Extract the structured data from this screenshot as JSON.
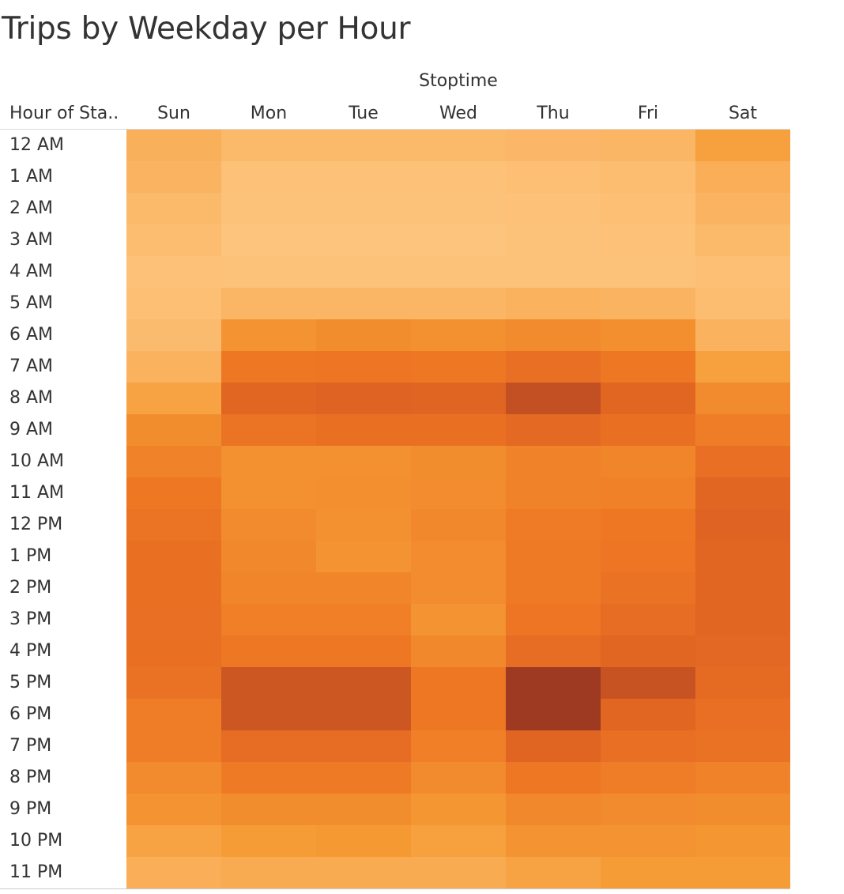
{
  "chart_data": {
    "type": "heatmap",
    "title": "Trips by Weekday per Hour",
    "column_group_label": "Stoptime",
    "row_header_label": "Hour of Sta..",
    "columns": [
      "Sun",
      "Mon",
      "Tue",
      "Wed",
      "Thu",
      "Fri",
      "Sat"
    ],
    "rows": [
      "12 AM",
      "1 AM",
      "2 AM",
      "3 AM",
      "4 AM",
      "5 AM",
      "6 AM",
      "7 AM",
      "8 AM",
      "9 AM",
      "10 AM",
      "11 AM",
      "12 PM",
      "1 PM",
      "2 PM",
      "3 PM",
      "4 PM",
      "5 PM",
      "6 PM",
      "7 PM",
      "8 PM",
      "9 PM",
      "10 PM",
      "11 PM"
    ],
    "intensity_scale": [
      0,
      1
    ],
    "values": [
      [
        0.13,
        0.08,
        0.08,
        0.08,
        0.09,
        0.1,
        0.22
      ],
      [
        0.11,
        0.04,
        0.04,
        0.04,
        0.05,
        0.06,
        0.14
      ],
      [
        0.08,
        0.03,
        0.03,
        0.03,
        0.04,
        0.05,
        0.11
      ],
      [
        0.06,
        0.02,
        0.02,
        0.02,
        0.03,
        0.04,
        0.08
      ],
      [
        0.04,
        0.03,
        0.03,
        0.03,
        0.03,
        0.03,
        0.05
      ],
      [
        0.05,
        0.1,
        0.1,
        0.1,
        0.12,
        0.11,
        0.06
      ],
      [
        0.07,
        0.3,
        0.34,
        0.32,
        0.36,
        0.33,
        0.12
      ],
      [
        0.12,
        0.5,
        0.52,
        0.5,
        0.6,
        0.5,
        0.22
      ],
      [
        0.2,
        0.7,
        0.74,
        0.72,
        0.86,
        0.7,
        0.36
      ],
      [
        0.34,
        0.55,
        0.58,
        0.58,
        0.65,
        0.58,
        0.46
      ],
      [
        0.42,
        0.32,
        0.32,
        0.34,
        0.42,
        0.4,
        0.6
      ],
      [
        0.5,
        0.32,
        0.33,
        0.35,
        0.42,
        0.43,
        0.7
      ],
      [
        0.55,
        0.36,
        0.32,
        0.38,
        0.47,
        0.5,
        0.74
      ],
      [
        0.58,
        0.38,
        0.3,
        0.35,
        0.48,
        0.52,
        0.7
      ],
      [
        0.58,
        0.4,
        0.4,
        0.35,
        0.48,
        0.56,
        0.7
      ],
      [
        0.59,
        0.44,
        0.44,
        0.3,
        0.52,
        0.62,
        0.7
      ],
      [
        0.58,
        0.5,
        0.5,
        0.38,
        0.62,
        0.7,
        0.68
      ],
      [
        0.56,
        0.82,
        0.82,
        0.5,
        1.0,
        0.84,
        0.64
      ],
      [
        0.46,
        0.82,
        0.82,
        0.5,
        1.0,
        0.7,
        0.6
      ],
      [
        0.46,
        0.62,
        0.62,
        0.44,
        0.72,
        0.6,
        0.56
      ],
      [
        0.36,
        0.48,
        0.48,
        0.36,
        0.5,
        0.46,
        0.42
      ],
      [
        0.3,
        0.34,
        0.34,
        0.28,
        0.38,
        0.36,
        0.34
      ],
      [
        0.2,
        0.24,
        0.26,
        0.22,
        0.3,
        0.3,
        0.28
      ],
      [
        0.14,
        0.16,
        0.16,
        0.16,
        0.2,
        0.24,
        0.24
      ]
    ],
    "color_scale": [
      "#fec884",
      "#f59a34",
      "#ee7724",
      "#de6222",
      "#9e3922"
    ],
    "grid": false,
    "legend": "none"
  }
}
